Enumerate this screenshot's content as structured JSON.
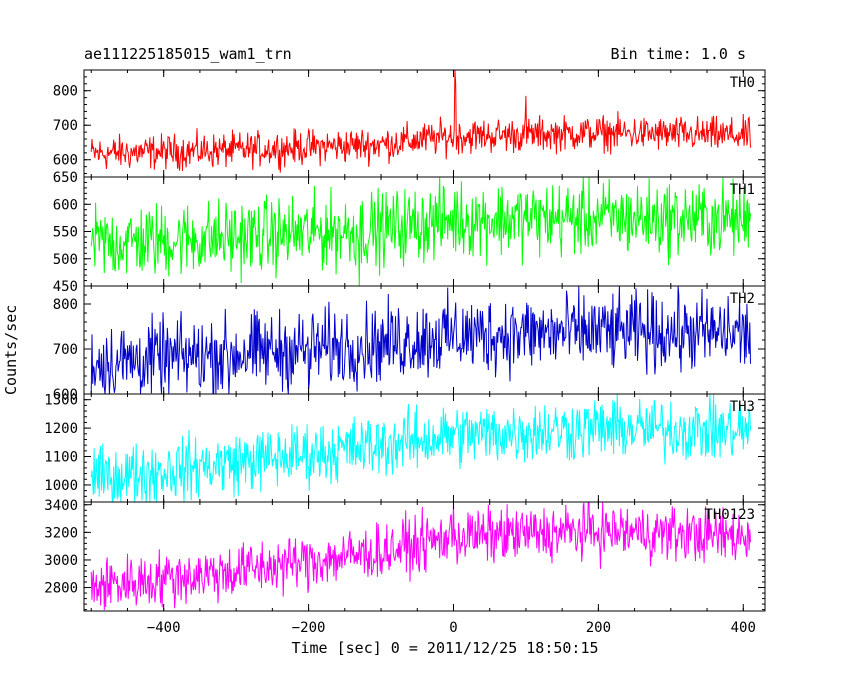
{
  "header": {
    "left_title": "ae111225185015_wam1_trn",
    "right_title": "Bin time: 1.0 s"
  },
  "axes": {
    "ylabel": "Counts/sec",
    "xlabel": "Time [sec] 0 = 2011/12/25 18:50:15"
  },
  "chart_data": {
    "type": "line",
    "title": "ae111225185015_wam1_trn",
    "subtitle": "Bin time: 1.0 s",
    "xlabel": "Time [sec] 0 = 2011/12/25 18:50:15",
    "ylabel": "Counts/sec",
    "xlim": [
      -510,
      430
    ],
    "x_ticks": [
      -400,
      -200,
      0,
      200,
      400
    ],
    "x_tick_labels": [
      "−400",
      "−200",
      "0",
      "200",
      "400"
    ],
    "x_range_data": [
      -500,
      410
    ],
    "grid": false,
    "panels": [
      {
        "name": "TH0",
        "color": "#ff0000",
        "ylim": [
          550,
          860
        ],
        "y_ticks": [
          600,
          700,
          800
        ],
        "y_tick_labels": [
          "600",
          "700",
          "800"
        ],
        "trend": [
          [
            -500,
            618
          ],
          [
            -300,
            628
          ],
          [
            -100,
            645
          ],
          [
            0,
            668
          ],
          [
            200,
            678
          ],
          [
            410,
            670
          ]
        ],
        "noise_amplitude": 55,
        "spikes": [
          [
            2,
            860
          ],
          [
            3,
            820
          ],
          [
            100,
            785
          ]
        ]
      },
      {
        "name": "TH1",
        "color": "#00ff00",
        "ylim": [
          450,
          650
        ],
        "y_ticks": [
          450,
          500,
          550,
          600,
          650
        ],
        "y_tick_labels": [
          "450",
          "500",
          "550",
          "600",
          "650"
        ],
        "trend": [
          [
            -500,
            528
          ],
          [
            -300,
            540
          ],
          [
            -100,
            555
          ],
          [
            0,
            572
          ],
          [
            200,
            575
          ],
          [
            410,
            572
          ]
        ],
        "noise_amplitude": 75,
        "spikes": [
          [
            -130,
            445
          ]
        ]
      },
      {
        "name": "TH2",
        "color": "#0000cc",
        "ylim": [
          600,
          840
        ],
        "y_ticks": [
          600,
          700,
          800
        ],
        "y_tick_labels": [
          "600",
          "700",
          "800"
        ],
        "trend": [
          [
            -500,
            668
          ],
          [
            -300,
            690
          ],
          [
            -100,
            712
          ],
          [
            0,
            730
          ],
          [
            200,
            738
          ],
          [
            410,
            735
          ]
        ],
        "noise_amplitude": 95,
        "spikes": [
          [
            -310,
            600
          ],
          [
            -200,
            610
          ]
        ]
      },
      {
        "name": "TH3",
        "color": "#00ffff",
        "ylim": [
          940,
          1320
        ],
        "y_ticks": [
          1000,
          1100,
          1200,
          1300
        ],
        "y_tick_labels": [
          "1000",
          "1100",
          "1200",
          "1300"
        ],
        "trend": [
          [
            -500,
            1020
          ],
          [
            -300,
            1080
          ],
          [
            -100,
            1140
          ],
          [
            0,
            1175
          ],
          [
            200,
            1200
          ],
          [
            410,
            1190
          ]
        ],
        "noise_amplitude": 120,
        "spikes": []
      },
      {
        "name": "TH0123",
        "color": "#ff00ff",
        "ylim": [
          2630,
          3420
        ],
        "y_ticks": [
          2800,
          3000,
          3200,
          3400
        ],
        "y_tick_labels": [
          "2800",
          "3000",
          "3200",
          "3400"
        ],
        "trend": [
          [
            -500,
            2810
          ],
          [
            -300,
            2920
          ],
          [
            -100,
            3060
          ],
          [
            0,
            3165
          ],
          [
            200,
            3210
          ],
          [
            410,
            3170
          ]
        ],
        "noise_amplitude": 220,
        "spikes": [
          [
            0,
            3420
          ]
        ]
      }
    ]
  }
}
